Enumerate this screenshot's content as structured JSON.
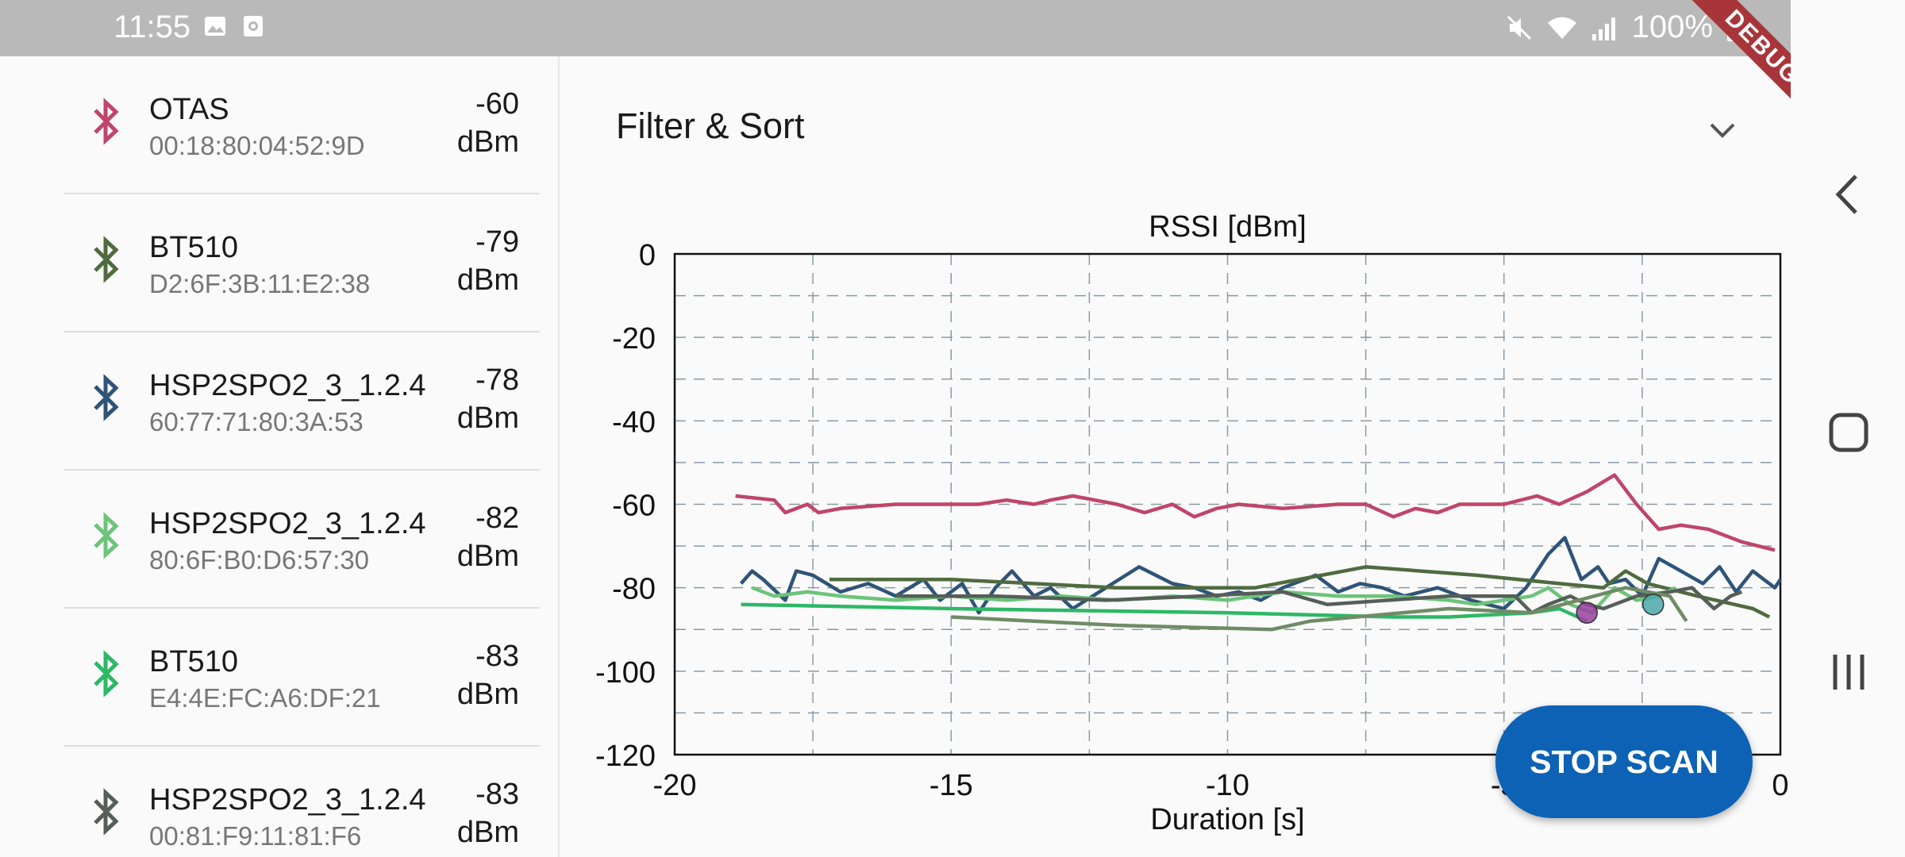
{
  "status_bar": {
    "time": "11:55",
    "battery": "100%"
  },
  "debug_banner": "DEBUG",
  "devices": [
    {
      "name": "OTAS",
      "mac": "00:18:80:04:52:9D",
      "rssi": "-60",
      "unit": "dBm",
      "color": "#c0456a"
    },
    {
      "name": "BT510",
      "mac": "D2:6F:3B:11:E2:38",
      "rssi": "-79",
      "unit": "dBm",
      "color": "#4f6b3f"
    },
    {
      "name": "HSP2SPO2_3_1.2.4",
      "mac": "60:77:71:80:3A:53",
      "rssi": "-78",
      "unit": "dBm",
      "color": "#2f5478"
    },
    {
      "name": "HSP2SPO2_3_1.2.4",
      "mac": "80:6F:B0:D6:57:30",
      "rssi": "-82",
      "unit": "dBm",
      "color": "#6cc47a"
    },
    {
      "name": "BT510",
      "mac": "E4:4E:FC:A6:DF:21",
      "rssi": "-83",
      "unit": "dBm",
      "color": "#2db866"
    },
    {
      "name": "HSP2SPO2_3_1.2.4",
      "mac": "00:81:F9:11:81:F6",
      "rssi": "-83",
      "unit": "dBm",
      "color": "#555e58"
    }
  ],
  "filter": {
    "title": "Filter & Sort"
  },
  "stop_scan_label": "STOP SCAN",
  "chart_data": {
    "type": "line",
    "title": "RSSI [dBm]",
    "xlabel": "Duration [s]",
    "ylabel": "",
    "xlim": [
      -20,
      0
    ],
    "ylim": [
      -120,
      0
    ],
    "x_ticks": [
      "-20",
      "-15",
      "-10",
      "-5",
      "0"
    ],
    "y_ticks": [
      "0",
      "-20",
      "-40",
      "-60",
      "-80",
      "-100",
      "-120"
    ],
    "grid": true,
    "series": [
      {
        "color": "#c0456a",
        "x": [
          -18.9,
          -18.2,
          -18.0,
          -17.6,
          -17.4,
          -17.0,
          -16.0,
          -15.1,
          -14.5,
          -14.0,
          -13.5,
          -13.2,
          -12.8,
          -12.4,
          -12.0,
          -11.5,
          -11.0,
          -10.6,
          -10.2,
          -9.8,
          -9.0,
          -8.0,
          -7.5,
          -7.0,
          -6.6,
          -6.2,
          -5.8,
          -5.4,
          -5.0,
          -4.4,
          -4.0,
          -3.5,
          -3.0,
          -2.6,
          -2.2,
          -1.8,
          -1.3,
          -0.7,
          -0.1
        ],
        "y": [
          -58,
          -59,
          -62,
          -60,
          -62,
          -61,
          -60,
          -60,
          -60,
          -59,
          -60,
          -59,
          -58,
          -59,
          -60,
          -62,
          -60,
          -63,
          -61,
          -60,
          -61,
          -60,
          -60,
          -63,
          -61,
          -62,
          -60,
          -60,
          -60,
          -58,
          -60,
          -57,
          -53,
          -60,
          -66,
          -65,
          -66,
          -69,
          -71
        ]
      },
      {
        "color": "#2f5478",
        "x": [
          -18.8,
          -18.6,
          -18.4,
          -18.0,
          -17.8,
          -17.5,
          -17.0,
          -16.5,
          -16.0,
          -15.5,
          -15.2,
          -14.8,
          -14.5,
          -14.2,
          -13.9,
          -13.5,
          -13.2,
          -12.8,
          -12.2,
          -11.6,
          -11.0,
          -10.6,
          -10.2,
          -9.8,
          -9.4,
          -9.0,
          -8.4,
          -8.0,
          -7.6,
          -7.2,
          -6.8,
          -6.2,
          -5.6,
          -5.0,
          -4.6,
          -4.2,
          -3.9,
          -3.6,
          -3.3,
          -3.1,
          -2.8,
          -2.5,
          -2.2,
          -1.8,
          -1.4,
          -1.1,
          -0.8,
          -0.5,
          -0.3,
          -0.1,
          0.0
        ],
        "y": [
          -79,
          -76,
          -78,
          -83,
          -76,
          -77,
          -81,
          -79,
          -82,
          -78,
          -83,
          -79,
          -86,
          -80,
          -76,
          -82,
          -80,
          -85,
          -80,
          -75,
          -79,
          -80,
          -82,
          -81,
          -83,
          -80,
          -77,
          -81,
          -79,
          -80,
          -82,
          -80,
          -83,
          -85,
          -80,
          -72,
          -68,
          -78,
          -75,
          -79,
          -78,
          -82,
          -73,
          -76,
          -79,
          -75,
          -81,
          -76,
          -78,
          -80,
          -78
        ]
      },
      {
        "color": "#4f6b3f",
        "x": [
          -17.2,
          -15.0,
          -12.0,
          -9.5,
          -7.5,
          -5.5,
          -4.0,
          -3.2,
          -2.8,
          -2.4,
          -1.5,
          -0.5,
          -0.2
        ],
        "y": [
          -78,
          -78,
          -80,
          -80,
          -75,
          -77,
          -79,
          -80,
          -76,
          -79,
          -82,
          -85,
          -87
        ]
      },
      {
        "color": "#6cc47a",
        "x": [
          -18.6,
          -18.2,
          -17.6,
          -17.0,
          -16.0,
          -15.0,
          -14.0,
          -13.0,
          -12.0,
          -11.0,
          -10.0,
          -9.0,
          -8.0,
          -7.0,
          -6.0,
          -5.5,
          -5.0,
          -4.5,
          -4.2,
          -3.8,
          -3.4,
          -3.0,
          -2.6,
          -2.2,
          -1.9
        ],
        "y": [
          -80,
          -82,
          -81,
          -82,
          -83,
          -82,
          -83,
          -82,
          -83,
          -82,
          -83,
          -81,
          -82,
          -82,
          -83,
          -84,
          -83,
          -82,
          -80,
          -84,
          -86,
          -80,
          -83,
          -82,
          -80
        ]
      },
      {
        "color": "#2db866",
        "x": [
          -18.8,
          -15.0,
          -10.0,
          -7.0,
          -6.0,
          -4.5,
          -4.0,
          -3.5
        ],
        "y": [
          -84,
          -85,
          -86,
          -87,
          -87,
          -86,
          -85,
          -88
        ]
      },
      {
        "color": "#555e58",
        "x": [
          -16.0,
          -14.2,
          -12.2,
          -10.5,
          -9.0,
          -8.2,
          -6.0,
          -4.8,
          -4.5,
          -4.2,
          -3.8,
          -3.5,
          -3.2,
          -2.6,
          -2.0,
          -1.6,
          -1.2,
          -0.9,
          -0.7
        ],
        "y": [
          -82,
          -82,
          -83,
          -82,
          -81,
          -84,
          -82,
          -82,
          -86,
          -84,
          -82,
          -84,
          -85,
          -82,
          -81,
          -80,
          -85,
          -82,
          -81
        ]
      },
      {
        "color": "#6f8c65",
        "x": [
          -15.0,
          -12.0,
          -9.2,
          -8.5,
          -6.0,
          -4.5,
          -2.8,
          -2.0,
          -1.7
        ],
        "y": [
          -87,
          -89,
          -90,
          -88,
          -85,
          -86,
          -80,
          -82,
          -88
        ]
      }
    ],
    "markers": [
      {
        "x": -3.5,
        "y": -86,
        "color": "#9b3fa0"
      },
      {
        "x": -2.3,
        "y": -84,
        "color": "#4aa8aa"
      }
    ]
  }
}
